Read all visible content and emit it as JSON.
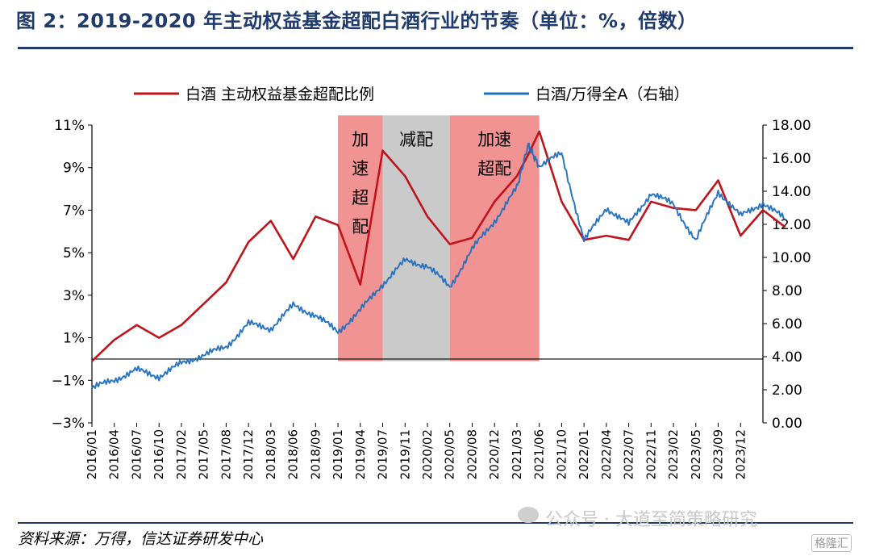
{
  "title": "图 2：2019-2020 年主动权益基金超配白酒行业的节奏（单位：%，倍数）",
  "source": "资料来源：万得，信达证券研发中心",
  "watermark": "公众号 · 大道至简策略研究",
  "corner_mark": "格隆汇",
  "chart_data": {
    "type": "line",
    "title": "",
    "grid": false,
    "legend_position": "top",
    "colors": {
      "left_series": "#c0141c",
      "right_series": "#1f6fbf",
      "accelerate": "#f08080",
      "reduce": "#c4c4c4"
    },
    "x_ticks": [
      "2016/01",
      "2016/04",
      "2016/07",
      "2016/10",
      "2017/02",
      "2017/05",
      "2017/08",
      "2017/12",
      "2018/03",
      "2018/06",
      "2018/09",
      "2019/01",
      "2019/04",
      "2019/07",
      "2019/11",
      "2020/02",
      "2020/05",
      "2020/08",
      "2020/12",
      "2021/03",
      "2021/06",
      "2021/10",
      "2022/01",
      "2022/04",
      "2022/07",
      "2022/11",
      "2023/02",
      "2023/05",
      "2023/09",
      "2023/12"
    ],
    "y_left": {
      "ticks": [
        "11%",
        "9%",
        "7%",
        "5%",
        "3%",
        "1%",
        "−1%",
        "−3%"
      ],
      "min": -3,
      "max": 11
    },
    "y_right": {
      "ticks": [
        "18.00",
        "16.00",
        "14.00",
        "12.00",
        "10.00",
        "8.00",
        "6.00",
        "4.00",
        "2.00",
        "0.00"
      ],
      "min": 0,
      "max": 18
    },
    "phases": [
      {
        "label": "加速超配",
        "kind": "accelerate",
        "start": 11,
        "end": 13,
        "vertical": true
      },
      {
        "label": "减配",
        "kind": "reduce",
        "start": 13,
        "end": 16,
        "vertical": false
      },
      {
        "label": "加速超配",
        "kind": "accelerate",
        "start": 16,
        "end": 20,
        "vertical": false
      }
    ],
    "series": [
      {
        "name": "白酒 主动权益基金超配比例",
        "axis": "left",
        "points": [
          [
            0,
            -0.1
          ],
          [
            1,
            0.9
          ],
          [
            2,
            1.6
          ],
          [
            3,
            1.0
          ],
          [
            4,
            1.6
          ],
          [
            5,
            2.6
          ],
          [
            6,
            3.6
          ],
          [
            7,
            5.5
          ],
          [
            8,
            6.5
          ],
          [
            9,
            4.7
          ],
          [
            10,
            6.7
          ],
          [
            11,
            6.3
          ],
          [
            12,
            3.5
          ],
          [
            13,
            9.8
          ],
          [
            14,
            8.6
          ],
          [
            15,
            6.7
          ],
          [
            16,
            5.4
          ],
          [
            17,
            5.7
          ],
          [
            18,
            7.4
          ],
          [
            19,
            8.6
          ],
          [
            19.5,
            9.6
          ],
          [
            20,
            10.7
          ],
          [
            21,
            7.4
          ],
          [
            22,
            5.6
          ],
          [
            23,
            5.8
          ],
          [
            24,
            5.6
          ],
          [
            25,
            7.4
          ],
          [
            26,
            7.1
          ],
          [
            27,
            7.0
          ],
          [
            28,
            8.4
          ],
          [
            29,
            5.8
          ],
          [
            30,
            7.0
          ],
          [
            31,
            6.2
          ]
        ]
      },
      {
        "name": "白酒/万得全A（右轴）",
        "axis": "right",
        "points": [
          [
            0,
            2.1
          ],
          [
            1,
            2.6
          ],
          [
            2,
            3.2
          ],
          [
            3,
            2.8
          ],
          [
            4,
            3.6
          ],
          [
            5,
            4.1
          ],
          [
            6,
            4.6
          ],
          [
            7,
            6.0
          ],
          [
            8,
            5.7
          ],
          [
            9,
            7.1
          ],
          [
            10,
            6.5
          ],
          [
            11,
            5.5
          ],
          [
            12,
            6.8
          ],
          [
            13,
            8.4
          ],
          [
            14,
            9.8
          ],
          [
            15,
            9.5
          ],
          [
            16,
            8.2
          ],
          [
            17,
            10.5
          ],
          [
            18,
            12.2
          ],
          [
            19,
            14.2
          ],
          [
            19.5,
            16.8
          ],
          [
            20,
            15.5
          ],
          [
            21,
            16.3
          ],
          [
            22,
            11.0
          ],
          [
            23,
            13.0
          ],
          [
            24,
            12.0
          ],
          [
            25,
            13.9
          ],
          [
            26,
            13.2
          ],
          [
            27,
            11.0
          ],
          [
            28,
            14.0
          ],
          [
            29,
            12.5
          ],
          [
            30,
            13.3
          ],
          [
            31,
            12.3
          ]
        ]
      }
    ]
  }
}
